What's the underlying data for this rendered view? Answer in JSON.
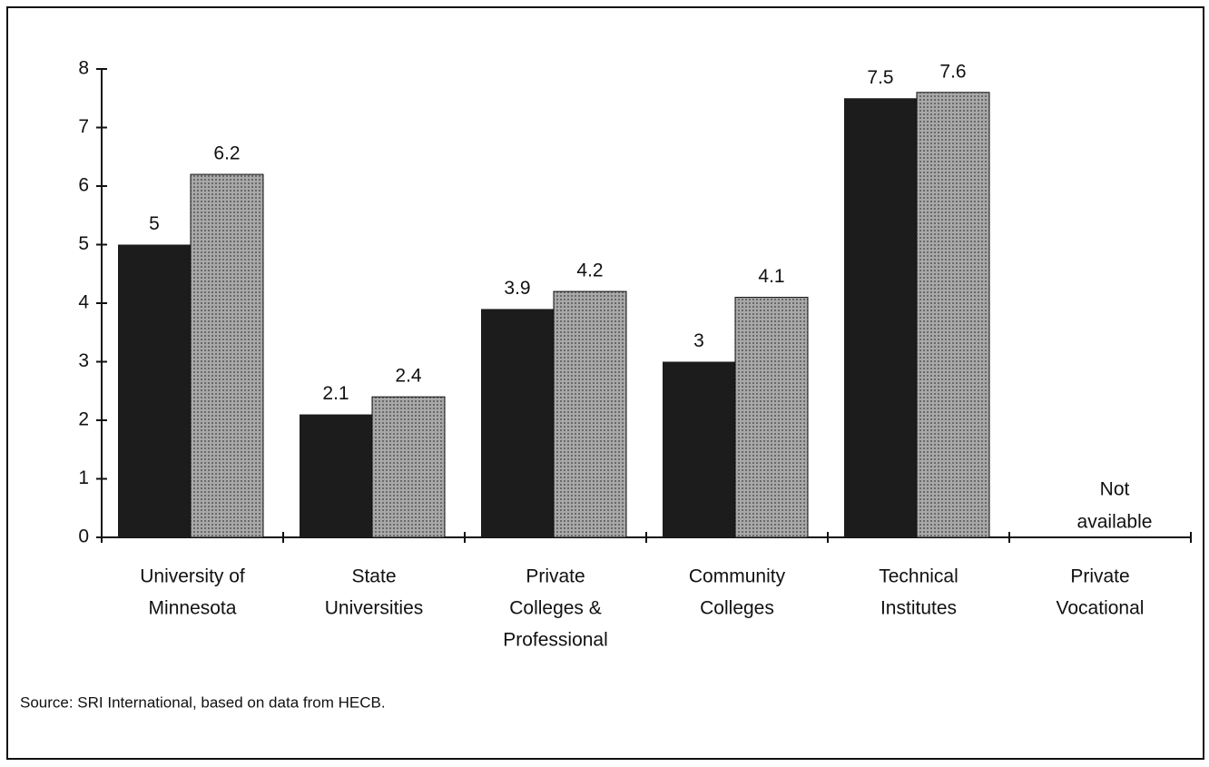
{
  "chart_data": {
    "type": "bar",
    "categories": [
      [
        "University of",
        "Minnesota"
      ],
      [
        "State",
        "Universities"
      ],
      [
        "Private",
        "Colleges &",
        "Professional"
      ],
      [
        "Community",
        "Colleges"
      ],
      [
        "Technical",
        "Institutes"
      ],
      [
        "Private",
        "Vocational"
      ]
    ],
    "series": [
      {
        "color": "#1c1c1c",
        "values": [
          5,
          2.1,
          3.9,
          3,
          7.5,
          null
        ]
      },
      {
        "color": "#a8a8a8",
        "values": [
          6.2,
          2.4,
          4.2,
          4.1,
          7.6,
          null
        ]
      }
    ],
    "ylim": [
      0,
      8
    ],
    "yticks": [
      0,
      1,
      2,
      3,
      4,
      5,
      6,
      7,
      8
    ],
    "annotation": [
      "Not",
      "available"
    ],
    "source": "Source:  SRI International, based on data from HECB."
  }
}
